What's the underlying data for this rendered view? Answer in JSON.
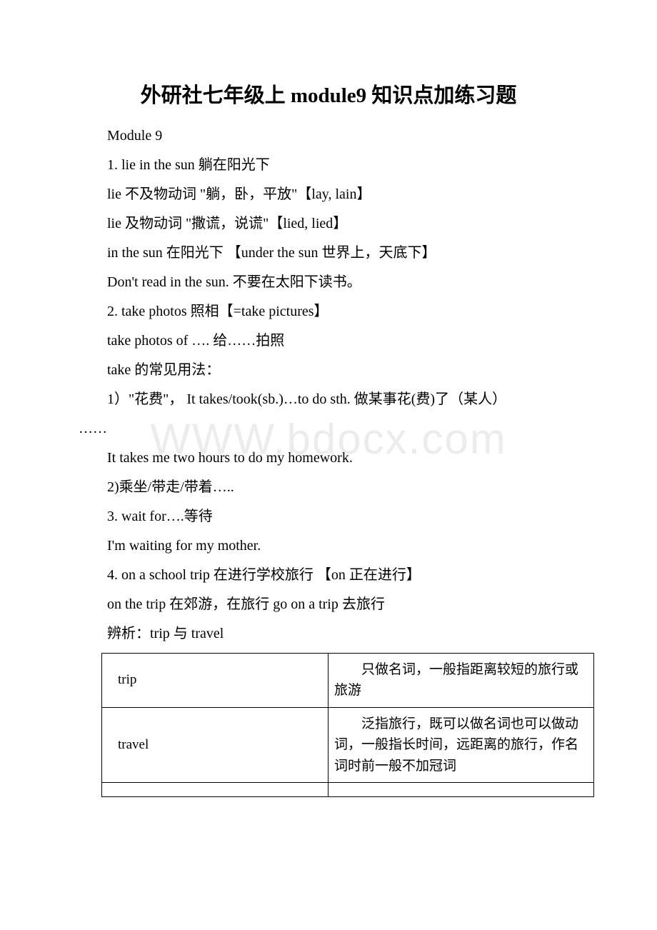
{
  "title": "外研社七年级上 module9 知识点加练习题",
  "watermark": "WWW.bdocx.com",
  "lines": [
    "Module 9",
    "1. lie in the sun 躺在阳光下",
    " lie 不及物动词 \"躺，卧，平放\"【lay, lain】",
    " lie 及物动词 \"撒谎，说谎\"【lied, lied】",
    " in the sun 在阳光下 【under the sun 世界上，天底下】",
    "Don't read in the sun. 不要在太阳下读书。",
    "2. take photos 照相【=take pictures】",
    "take photos of …. 给……拍照",
    " take 的常见用法：",
    "1）\"花费\"， It takes/took(sb.)…to do sth. 做某事花(费)了（某人）",
    "It takes me two hours to do my homework.",
    " 2)乘坐/带走/带着…..",
    "3. wait for….等待",
    "I'm waiting for my mother.",
    "4. on a school trip 在进行学校旅行 【on 正在进行】",
    "on the trip 在郊游，在旅行 go on a trip 去旅行",
    " 辨析：trip 与 travel"
  ],
  "cont": "……",
  "table": {
    "rows": [
      {
        "left": "trip",
        "right": "只做名词，一般指距离较短的旅行或旅游"
      },
      {
        "left": "travel",
        "right": "泛指旅行，既可以做名词也可以做动词，一般指长时间，远距离的旅行，作名词时前一般不加冠词"
      }
    ]
  }
}
